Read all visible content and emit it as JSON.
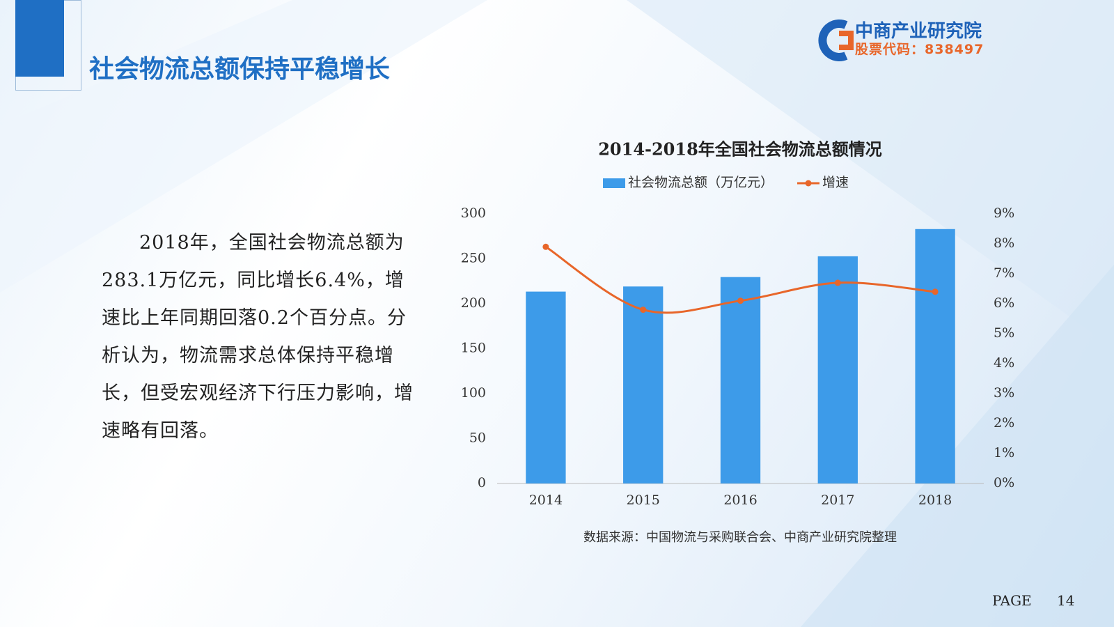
{
  "slide": {
    "title": "社会物流总额保持平稳增长",
    "body": "2018年，全国社会物流总额为283.1万亿元，同比增长6.4%，增速比上年同期回落0.2个百分点。分析认为，物流需求总体保持平稳增长，但受宏观经济下行压力影响，增速略有回落。",
    "logo_name": "中商产业研究院",
    "logo_code": "股票代码：838497",
    "source": "数据来源：中国物流与采购联合会、中商产业研究院整理",
    "page_label": "PAGE",
    "page_number": 14
  },
  "chart_data": {
    "type": "bar",
    "title": "2014-2018年全国社会物流总额情况",
    "categories": [
      "2014",
      "2015",
      "2016",
      "2017",
      "2018"
    ],
    "series": [
      {
        "name": "社会物流总额（万亿元）",
        "color": "#3d9be9",
        "type": "bar",
        "values": [
          213.5,
          219.2,
          229.7,
          252.8,
          283.1
        ]
      },
      {
        "name": "增速",
        "color": "#e8662a",
        "type": "line",
        "axis": "y2",
        "values": [
          7.9,
          5.8,
          6.1,
          6.7,
          6.4
        ]
      }
    ],
    "ylim": [
      0,
      300
    ],
    "yticks": [
      0,
      50,
      100,
      150,
      200,
      250,
      300
    ],
    "y2lim": [
      0,
      9
    ],
    "y2ticks": [
      {
        "value": 0,
        "label": "0%"
      },
      {
        "value": 1,
        "label": "1%"
      },
      {
        "value": 2,
        "label": "2%"
      },
      {
        "value": 3,
        "label": "3%"
      },
      {
        "value": 4,
        "label": "4%"
      },
      {
        "value": 5,
        "label": "5%"
      },
      {
        "value": 6,
        "label": "6%"
      },
      {
        "value": 7,
        "label": "7%"
      },
      {
        "value": 8,
        "label": "8%"
      },
      {
        "value": 9,
        "label": "9%"
      }
    ],
    "grid": false
  }
}
